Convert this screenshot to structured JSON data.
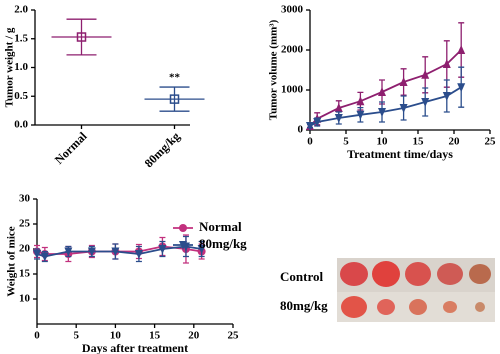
{
  "chart_data": [
    {
      "type": "errorbar",
      "ylabel": "Tumor weight / g",
      "categories": [
        "Normal",
        "80mg/kg"
      ],
      "values": [
        1.53,
        0.45
      ],
      "errors": [
        0.31,
        0.21
      ],
      "colors": [
        "#8e1f6f",
        "#2b4d8c"
      ],
      "marker": "square",
      "ylim": [
        0,
        2
      ],
      "yticks": [
        {
          "value": 0,
          "label": "0.0"
        },
        0.5,
        {
          "value": 1,
          "label": "1.0"
        },
        1.5,
        {
          "value": 2,
          "label": "2.0"
        }
      ],
      "annotation": "**"
    },
    {
      "type": "line",
      "xlabel": "Treatment time/days",
      "ylabel": "Tumor volume (mm³)",
      "x": [
        0,
        1,
        4,
        7,
        10,
        13,
        16,
        19,
        21
      ],
      "series": [
        {
          "color": "#8e1f6f",
          "marker": "triangle-up",
          "values": [
            100,
            280,
            550,
            720,
            950,
            1200,
            1380,
            1650,
            2000
          ],
          "errors": [
            40,
            150,
            180,
            220,
            300,
            330,
            450,
            580,
            680
          ]
        },
        {
          "color": "#2b4d8c",
          "marker": "triangle-down",
          "values": [
            100,
            200,
            300,
            380,
            450,
            550,
            700,
            850,
            1070
          ],
          "errors": [
            40,
            100,
            150,
            180,
            250,
            300,
            350,
            400,
            500
          ]
        }
      ],
      "xlim": [
        0,
        25
      ],
      "xticks": [
        0,
        5,
        10,
        15,
        20,
        25
      ],
      "ylim": [
        0,
        3000
      ],
      "yticks": [
        0,
        1000,
        2000,
        3000
      ]
    },
    {
      "type": "line",
      "xlabel": "Days after treatment",
      "ylabel": "Weight of mice",
      "x": [
        0,
        1,
        4,
        7,
        10,
        13,
        16,
        19,
        21
      ],
      "series": [
        {
          "name": "Normal",
          "color": "#c2307e",
          "marker": "circle",
          "values": [
            19.5,
            19,
            19,
            19.5,
            19.5,
            19.5,
            20.5,
            20,
            19.5
          ],
          "errors": [
            1.2,
            1.3,
            1.5,
            1.2,
            1.5,
            1.4,
            1.8,
            2.8,
            1.5
          ]
        },
        {
          "name": "80mg/kg",
          "color": "#2b4d8c",
          "marker": "triangle-down",
          "values": [
            19,
            18.5,
            19.5,
            19.5,
            19.5,
            19,
            20,
            20.5,
            20
          ],
          "errors": [
            1,
            1,
            1,
            1,
            1.5,
            1.5,
            1.5,
            2,
            1.5
          ]
        }
      ],
      "xlim": [
        0,
        25
      ],
      "xticks": [
        0,
        5,
        10,
        15,
        20,
        25
      ],
      "ylim": [
        5,
        30
      ],
      "yticks": [
        10,
        15,
        20,
        25,
        30
      ],
      "legend": "top-right"
    }
  ],
  "photo_panel": {
    "row_labels": [
      "Control",
      "80mg/kg"
    ]
  }
}
